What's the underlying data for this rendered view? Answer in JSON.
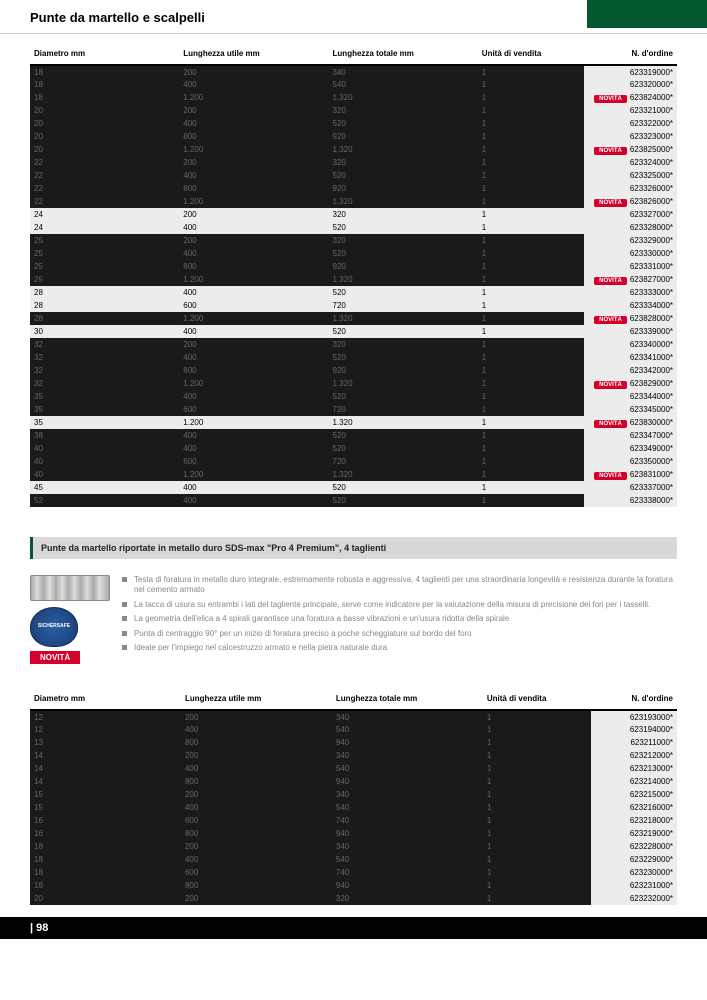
{
  "page_title": "Punte da martello e scalpelli",
  "page_number": "| 98",
  "columns": {
    "diam": "Diametro\nmm",
    "util": "Lunghezza utile\nmm",
    "tot": "Lunghezza totale\nmm",
    "unit": "Unità\ndi vendita",
    "ord": "N. d'ordine"
  },
  "novita_label": "NOVITÀ",
  "table1": [
    {
      "d": "18",
      "u": "200",
      "t": "340",
      "q": "1",
      "o": "623319000*",
      "dk": true
    },
    {
      "d": "18",
      "u": "400",
      "t": "540",
      "q": "1",
      "o": "623320000*",
      "dk": true
    },
    {
      "d": "18",
      "u": "1.200",
      "t": "1.320",
      "q": "1",
      "o": "623824000*",
      "dk": true,
      "n": true
    },
    {
      "d": "20",
      "u": "200",
      "t": "320",
      "q": "1",
      "o": "623321000*",
      "dk": true
    },
    {
      "d": "20",
      "u": "400",
      "t": "520",
      "q": "1",
      "o": "623322000*",
      "dk": true
    },
    {
      "d": "20",
      "u": "800",
      "t": "920",
      "q": "1",
      "o": "623323000*",
      "dk": true
    },
    {
      "d": "20",
      "u": "1.200",
      "t": "1.320",
      "q": "1",
      "o": "623825000*",
      "dk": true,
      "n": true
    },
    {
      "d": "22",
      "u": "200",
      "t": "320",
      "q": "1",
      "o": "623324000*",
      "dk": true
    },
    {
      "d": "22",
      "u": "400",
      "t": "520",
      "q": "1",
      "o": "623325000*",
      "dk": true
    },
    {
      "d": "22",
      "u": "800",
      "t": "920",
      "q": "1",
      "o": "623326000*",
      "dk": true
    },
    {
      "d": "22",
      "u": "1.200",
      "t": "1.320",
      "q": "1",
      "o": "623826000*",
      "dk": true,
      "n": true
    },
    {
      "d": "24",
      "u": "200",
      "t": "320",
      "q": "1",
      "o": "623327000*",
      "lt": true
    },
    {
      "d": "24",
      "u": "400",
      "t": "520",
      "q": "1",
      "o": "623328000*",
      "lt": true
    },
    {
      "d": "25",
      "u": "200",
      "t": "320",
      "q": "1",
      "o": "623329000*",
      "dk": true
    },
    {
      "d": "25",
      "u": "400",
      "t": "520",
      "q": "1",
      "o": "623330000*",
      "dk": true
    },
    {
      "d": "25",
      "u": "800",
      "t": "920",
      "q": "1",
      "o": "623331000*",
      "dk": true
    },
    {
      "d": "25",
      "u": "1.200",
      "t": "1.320",
      "q": "1",
      "o": "623827000*",
      "dk": true,
      "n": true
    },
    {
      "d": "28",
      "u": "400",
      "t": "520",
      "q": "1",
      "o": "623333000*",
      "lt": true
    },
    {
      "d": "28",
      "u": "600",
      "t": "720",
      "q": "1",
      "o": "623334000*",
      "lt": true
    },
    {
      "d": "28",
      "u": "1.200",
      "t": "1.320",
      "q": "1",
      "o": "623828000*",
      "dk": true,
      "n": true
    },
    {
      "d": "30",
      "u": "400",
      "t": "520",
      "q": "1",
      "o": "623339000*",
      "lt": true
    },
    {
      "d": "32",
      "u": "200",
      "t": "320",
      "q": "1",
      "o": "623340000*",
      "dk": true
    },
    {
      "d": "32",
      "u": "400",
      "t": "520",
      "q": "1",
      "o": "623341000*",
      "dk": true
    },
    {
      "d": "32",
      "u": "800",
      "t": "920",
      "q": "1",
      "o": "623342000*",
      "dk": true
    },
    {
      "d": "32",
      "u": "1.200",
      "t": "1.320",
      "q": "1",
      "o": "623829000*",
      "dk": true,
      "n": true
    },
    {
      "d": "35",
      "u": "400",
      "t": "520",
      "q": "1",
      "o": "623344000*",
      "dk": true
    },
    {
      "d": "35",
      "u": "600",
      "t": "720",
      "q": "1",
      "o": "623345000*",
      "dk": true
    },
    {
      "d": "35",
      "u": "1.200",
      "t": "1.320",
      "q": "1",
      "o": "623830000*",
      "lt": true,
      "n": true
    },
    {
      "d": "38",
      "u": "400",
      "t": "520",
      "q": "1",
      "o": "623347000*",
      "dk": true
    },
    {
      "d": "40",
      "u": "400",
      "t": "520",
      "q": "1",
      "o": "623349000*",
      "dk": true
    },
    {
      "d": "40",
      "u": "600",
      "t": "720",
      "q": "1",
      "o": "623350000*",
      "dk": true
    },
    {
      "d": "40",
      "u": "1.200",
      "t": "1.320",
      "q": "1",
      "o": "623831000*",
      "dk": true,
      "n": true
    },
    {
      "d": "45",
      "u": "400",
      "t": "520",
      "q": "1",
      "o": "623337000*",
      "lt": true
    },
    {
      "d": "52",
      "u": "400",
      "t": "520",
      "q": "1",
      "o": "623338000*",
      "dk": true
    }
  ],
  "section2_title": "Punte da martello riportate in metallo duro SDS-max \"Pro 4 Premium\", 4 taglienti",
  "sichersafe_label": "SICHERSAFE",
  "bullets": [
    "Testa di foratura in metallo duro integrale, estremamente robusta e aggressiva, 4 taglienti per una straordinaria longevità e resistenza durante la foratura nel cemento armato",
    "La tacca di usura su entrambi i lati del tagliente principale, serve come indicatore per la valutazione della misura di precisione dei fori per i tasselli.",
    "La geometria dell'elica a 4 spirali garantisce una foratura a basse vibrazioni e un'usura ridotta della spirale",
    "Punta di centraggio 90° per un inizio di foratura preciso a poche scheggiature sul bordo del foro",
    "Ideale per l'impiego nel calcestruzzo armato e nella pietra naturale dura"
  ],
  "table2": [
    {
      "d": "12",
      "u": "200",
      "t": "340",
      "q": "1",
      "o": "623193000*",
      "dk": true
    },
    {
      "d": "12",
      "u": "400",
      "t": "540",
      "q": "1",
      "o": "623194000*",
      "dk": true
    },
    {
      "d": "13",
      "u": "800",
      "t": "940",
      "q": "1",
      "o": "623211000*",
      "dk": true
    },
    {
      "d": "14",
      "u": "200",
      "t": "340",
      "q": "1",
      "o": "623212000*",
      "dk": true
    },
    {
      "d": "14",
      "u": "400",
      "t": "540",
      "q": "1",
      "o": "623213000*",
      "dk": true
    },
    {
      "d": "14",
      "u": "800",
      "t": "940",
      "q": "1",
      "o": "623214000*",
      "dk": true
    },
    {
      "d": "15",
      "u": "200",
      "t": "340",
      "q": "1",
      "o": "623215000*",
      "dk": true
    },
    {
      "d": "15",
      "u": "400",
      "t": "540",
      "q": "1",
      "o": "623216000*",
      "dk": true
    },
    {
      "d": "16",
      "u": "600",
      "t": "740",
      "q": "1",
      "o": "623218000*",
      "dk": true
    },
    {
      "d": "16",
      "u": "800",
      "t": "940",
      "q": "1",
      "o": "623219000*",
      "dk": true
    },
    {
      "d": "18",
      "u": "200",
      "t": "340",
      "q": "1",
      "o": "623228000*",
      "dk": true
    },
    {
      "d": "18",
      "u": "400",
      "t": "540",
      "q": "1",
      "o": "623229000*",
      "dk": true
    },
    {
      "d": "18",
      "u": "600",
      "t": "740",
      "q": "1",
      "o": "623230000*",
      "dk": true
    },
    {
      "d": "18",
      "u": "800",
      "t": "940",
      "q": "1",
      "o": "623231000*",
      "dk": true
    },
    {
      "d": "20",
      "u": "200",
      "t": "320",
      "q": "1",
      "o": "623232000*",
      "dk": true
    }
  ]
}
